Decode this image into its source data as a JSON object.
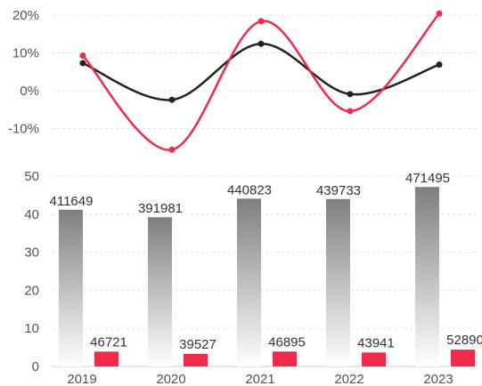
{
  "chart_data": {
    "type": "bar",
    "categories": [
      "2019",
      "2020",
      "2021",
      "2022",
      "2023"
    ],
    "grid": true,
    "top_panel": {
      "type": "line",
      "yticks": [
        "20%",
        "10%",
        "0%",
        "-10%"
      ],
      "ylim": [
        -20,
        20
      ],
      "series": [
        {
          "values": [
            7.3,
            -2.4,
            12.4,
            -0.9,
            6.9
          ],
          "color": "#222222"
        },
        {
          "values": [
            9.3,
            -15.6,
            18.4,
            -5.4,
            20.4
          ],
          "color": "#ef2a4a"
        }
      ]
    },
    "bottom_panel": {
      "type": "bar",
      "yticks": [
        "0",
        "10",
        "20",
        "30",
        "40",
        "50"
      ],
      "ylim": [
        0,
        50
      ],
      "series": [
        {
          "values": [
            411649,
            391981,
            440823,
            439733,
            471495
          ],
          "labels": [
            "411649",
            "391981",
            "440823",
            "439733",
            "471495"
          ],
          "color": "#888888"
        },
        {
          "values": [
            46721,
            39527,
            46895,
            43941,
            52890
          ],
          "labels": [
            "46721",
            "39527",
            "46895",
            "43941",
            "52890"
          ],
          "color": "#ef2a4a"
        }
      ]
    }
  }
}
